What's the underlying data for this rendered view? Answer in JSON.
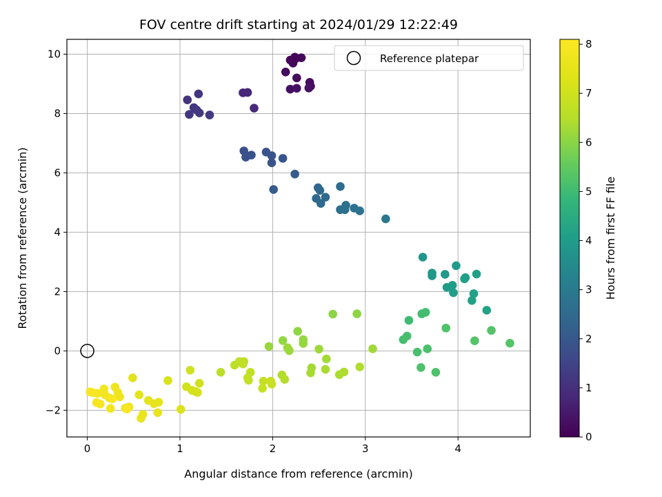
{
  "chart_data": {
    "type": "scatter",
    "title": "FOV centre drift starting at 2024/01/29 12:22:49",
    "xlabel": "Angular distance from reference (arcmin)",
    "ylabel": "Rotation from reference (arcmin)",
    "xlim": [
      -0.22,
      4.78
    ],
    "ylim": [
      -2.9,
      10.5
    ],
    "xticks": [
      0,
      1,
      2,
      3,
      4
    ],
    "yticks": [
      -2,
      0,
      2,
      4,
      6,
      8,
      10
    ],
    "grid": true,
    "legend": {
      "position": "upper-right",
      "entries": [
        "Reference platepar"
      ]
    },
    "reference_point": {
      "x": 0,
      "y": 0
    },
    "colorbar": {
      "label": "Hours from first FF file",
      "colormap": "viridis",
      "range": [
        0,
        8.1
      ],
      "ticks": [
        0,
        1,
        2,
        3,
        4,
        5,
        6,
        7,
        8
      ]
    },
    "series": [
      {
        "points": [
          {
            "x": 2.19,
            "y": 9.8,
            "h": 0.1
          },
          {
            "x": 2.25,
            "y": 9.85,
            "h": 0.12
          },
          {
            "x": 2.31,
            "y": 9.88,
            "h": 0.15
          },
          {
            "x": 2.22,
            "y": 9.7,
            "h": 0.17
          },
          {
            "x": 2.14,
            "y": 9.4,
            "h": 0.2
          },
          {
            "x": 2.26,
            "y": 9.2,
            "h": 0.22
          },
          {
            "x": 2.4,
            "y": 9.05,
            "h": 0.25
          },
          {
            "x": 2.41,
            "y": 8.92,
            "h": 0.28
          },
          {
            "x": 2.19,
            "y": 8.82,
            "h": 0.3
          },
          {
            "x": 2.26,
            "y": 8.85,
            "h": 0.33
          },
          {
            "x": 2.39,
            "y": 8.86,
            "h": 0.35
          },
          {
            "x": 2.24,
            "y": 9.9,
            "h": 0.08
          },
          {
            "x": 1.68,
            "y": 8.7,
            "h": 0.8
          },
          {
            "x": 1.73,
            "y": 8.71,
            "h": 0.82
          },
          {
            "x": 1.8,
            "y": 8.18,
            "h": 0.85
          },
          {
            "x": 1.08,
            "y": 8.46,
            "h": 1.1
          },
          {
            "x": 1.2,
            "y": 8.66,
            "h": 1.12
          },
          {
            "x": 1.15,
            "y": 8.2,
            "h": 1.15
          },
          {
            "x": 1.18,
            "y": 8.12,
            "h": 1.18
          },
          {
            "x": 1.1,
            "y": 7.97,
            "h": 1.2
          },
          {
            "x": 1.21,
            "y": 8.02,
            "h": 1.22
          },
          {
            "x": 1.32,
            "y": 7.95,
            "h": 1.25
          },
          {
            "x": 1.69,
            "y": 6.74,
            "h": 1.8
          },
          {
            "x": 1.71,
            "y": 6.53,
            "h": 1.82
          },
          {
            "x": 1.77,
            "y": 6.6,
            "h": 1.85
          },
          {
            "x": 1.93,
            "y": 6.7,
            "h": 1.87
          },
          {
            "x": 1.99,
            "y": 6.58,
            "h": 1.9
          },
          {
            "x": 1.99,
            "y": 6.34,
            "h": 1.92
          },
          {
            "x": 2.11,
            "y": 6.49,
            "h": 1.95
          },
          {
            "x": 2.01,
            "y": 5.44,
            "h": 2.1
          },
          {
            "x": 2.24,
            "y": 5.96,
            "h": 2.15
          },
          {
            "x": 2.49,
            "y": 5.5,
            "h": 2.4
          },
          {
            "x": 2.51,
            "y": 5.41,
            "h": 2.42
          },
          {
            "x": 2.47,
            "y": 5.14,
            "h": 2.45
          },
          {
            "x": 2.57,
            "y": 5.18,
            "h": 2.48
          },
          {
            "x": 2.52,
            "y": 4.97,
            "h": 2.5
          },
          {
            "x": 2.73,
            "y": 5.54,
            "h": 2.6
          },
          {
            "x": 2.73,
            "y": 4.76,
            "h": 2.65
          },
          {
            "x": 2.79,
            "y": 4.91,
            "h": 2.68
          },
          {
            "x": 2.78,
            "y": 4.76,
            "h": 2.7
          },
          {
            "x": 2.88,
            "y": 4.81,
            "h": 2.73
          },
          {
            "x": 2.94,
            "y": 4.72,
            "h": 2.75
          },
          {
            "x": 3.22,
            "y": 4.45,
            "h": 2.9
          },
          {
            "x": 3.62,
            "y": 3.16,
            "h": 3.8
          },
          {
            "x": 3.72,
            "y": 2.62,
            "h": 3.85
          },
          {
            "x": 3.72,
            "y": 2.53,
            "h": 3.88
          },
          {
            "x": 3.86,
            "y": 2.58,
            "h": 3.92
          },
          {
            "x": 3.98,
            "y": 2.87,
            "h": 3.95
          },
          {
            "x": 3.88,
            "y": 2.14,
            "h": 4.0
          },
          {
            "x": 3.94,
            "y": 2.21,
            "h": 4.02
          },
          {
            "x": 3.95,
            "y": 1.96,
            "h": 4.05
          },
          {
            "x": 4.07,
            "y": 2.43,
            "h": 4.08
          },
          {
            "x": 4.08,
            "y": 2.47,
            "h": 4.1
          },
          {
            "x": 4.2,
            "y": 2.59,
            "h": 4.12
          },
          {
            "x": 4.15,
            "y": 1.7,
            "h": 4.15
          },
          {
            "x": 4.17,
            "y": 1.93,
            "h": 4.18
          },
          {
            "x": 4.31,
            "y": 1.37,
            "h": 4.2
          },
          {
            "x": 3.47,
            "y": 1.03,
            "h": 5.0
          },
          {
            "x": 3.61,
            "y": 1.25,
            "h": 5.05
          },
          {
            "x": 3.65,
            "y": 1.3,
            "h": 5.08
          },
          {
            "x": 3.41,
            "y": 0.38,
            "h": 5.1
          },
          {
            "x": 3.45,
            "y": 0.5,
            "h": 5.12
          },
          {
            "x": 3.56,
            "y": -0.04,
            "h": 5.15
          },
          {
            "x": 3.67,
            "y": 0.07,
            "h": 5.18
          },
          {
            "x": 3.6,
            "y": -0.56,
            "h": 5.2
          },
          {
            "x": 3.76,
            "y": -0.72,
            "h": 5.22
          },
          {
            "x": 3.87,
            "y": 0.77,
            "h": 5.25
          },
          {
            "x": 4.18,
            "y": 0.34,
            "h": 5.28
          },
          {
            "x": 4.36,
            "y": 0.69,
            "h": 5.3
          },
          {
            "x": 4.56,
            "y": 0.26,
            "h": 5.32
          },
          {
            "x": 2.65,
            "y": 1.24,
            "h": 6.0
          },
          {
            "x": 2.91,
            "y": 1.25,
            "h": 6.02
          },
          {
            "x": 2.27,
            "y": 0.66,
            "h": 6.05
          },
          {
            "x": 2.11,
            "y": 0.35,
            "h": 6.08
          },
          {
            "x": 2.33,
            "y": 0.38,
            "h": 6.1
          },
          {
            "x": 2.33,
            "y": 0.25,
            "h": 6.12
          },
          {
            "x": 1.96,
            "y": 0.15,
            "h": 6.15
          },
          {
            "x": 2.16,
            "y": 0.11,
            "h": 6.18
          },
          {
            "x": 2.18,
            "y": 0.01,
            "h": 6.2
          },
          {
            "x": 2.5,
            "y": 0.06,
            "h": 6.22
          },
          {
            "x": 3.08,
            "y": 0.07,
            "h": 6.25
          },
          {
            "x": 2.58,
            "y": -0.27,
            "h": 6.28
          },
          {
            "x": 2.42,
            "y": -0.57,
            "h": 6.3
          },
          {
            "x": 2.41,
            "y": -0.74,
            "h": 6.32
          },
          {
            "x": 2.57,
            "y": -0.62,
            "h": 6.35
          },
          {
            "x": 2.72,
            "y": -0.8,
            "h": 6.38
          },
          {
            "x": 2.77,
            "y": -0.71,
            "h": 6.4
          },
          {
            "x": 2.94,
            "y": -0.54,
            "h": 6.42
          },
          {
            "x": 2.1,
            "y": -0.81,
            "h": 6.45
          },
          {
            "x": 2.13,
            "y": -0.96,
            "h": 6.48
          },
          {
            "x": 1.44,
            "y": -0.72,
            "h": 6.6
          },
          {
            "x": 1.59,
            "y": -0.48,
            "h": 6.62
          },
          {
            "x": 1.64,
            "y": -0.36,
            "h": 6.65
          },
          {
            "x": 1.69,
            "y": -0.36,
            "h": 6.68
          },
          {
            "x": 1.68,
            "y": -0.44,
            "h": 6.7
          },
          {
            "x": 1.76,
            "y": -0.72,
            "h": 6.72
          },
          {
            "x": 1.73,
            "y": -0.91,
            "h": 6.75
          },
          {
            "x": 1.74,
            "y": -0.99,
            "h": 6.78
          },
          {
            "x": 1.9,
            "y": -1.02,
            "h": 6.8
          },
          {
            "x": 1.89,
            "y": -1.26,
            "h": 6.82
          },
          {
            "x": 1.98,
            "y": -1.02,
            "h": 6.85
          },
          {
            "x": 1.99,
            "y": -1.12,
            "h": 6.88
          },
          {
            "x": 1.11,
            "y": -0.65,
            "h": 7.0
          },
          {
            "x": 1.21,
            "y": -1.09,
            "h": 7.02
          },
          {
            "x": 1.07,
            "y": -1.21,
            "h": 7.05
          },
          {
            "x": 1.13,
            "y": -1.33,
            "h": 7.08
          },
          {
            "x": 1.17,
            "y": -1.37,
            "h": 7.1
          },
          {
            "x": 1.19,
            "y": -1.4,
            "h": 7.12
          },
          {
            "x": 0.87,
            "y": -1.0,
            "h": 7.2
          },
          {
            "x": 1.01,
            "y": -1.97,
            "h": 7.25
          },
          {
            "x": 0.49,
            "y": -0.91,
            "h": 7.4
          },
          {
            "x": 0.56,
            "y": -1.48,
            "h": 7.45
          },
          {
            "x": 0.66,
            "y": -1.67,
            "h": 7.5
          },
          {
            "x": 0.72,
            "y": -1.78,
            "h": 7.52
          },
          {
            "x": 0.77,
            "y": -1.73,
            "h": 7.55
          },
          {
            "x": 0.76,
            "y": -2.08,
            "h": 7.58
          },
          {
            "x": 0.6,
            "y": -2.14,
            "h": 7.6
          },
          {
            "x": 0.58,
            "y": -2.27,
            "h": 7.62
          },
          {
            "x": 0.41,
            "y": -1.93,
            "h": 7.65
          },
          {
            "x": 0.45,
            "y": -1.89,
            "h": 7.68
          },
          {
            "x": 0.33,
            "y": -1.4,
            "h": 7.7
          },
          {
            "x": 0.35,
            "y": -1.55,
            "h": 7.72
          },
          {
            "x": 0.3,
            "y": -1.22,
            "h": 7.75
          },
          {
            "x": 0.24,
            "y": -1.59,
            "h": 7.78
          },
          {
            "x": 0.25,
            "y": -1.94,
            "h": 7.8
          },
          {
            "x": 0.18,
            "y": -1.28,
            "h": 7.82
          },
          {
            "x": 0.19,
            "y": -1.48,
            "h": 7.85
          },
          {
            "x": 0.11,
            "y": -1.43,
            "h": 7.88
          },
          {
            "x": 0.1,
            "y": -1.74,
            "h": 7.9
          },
          {
            "x": 0.14,
            "y": -1.79,
            "h": 7.92
          },
          {
            "x": 0.03,
            "y": -1.38,
            "h": 7.95
          },
          {
            "x": 0.06,
            "y": -1.41,
            "h": 7.98
          },
          {
            "x": 0.27,
            "y": -1.62,
            "h": 8.0
          },
          {
            "x": 0.43,
            "y": -1.96,
            "h": 8.02
          }
        ]
      }
    ]
  }
}
